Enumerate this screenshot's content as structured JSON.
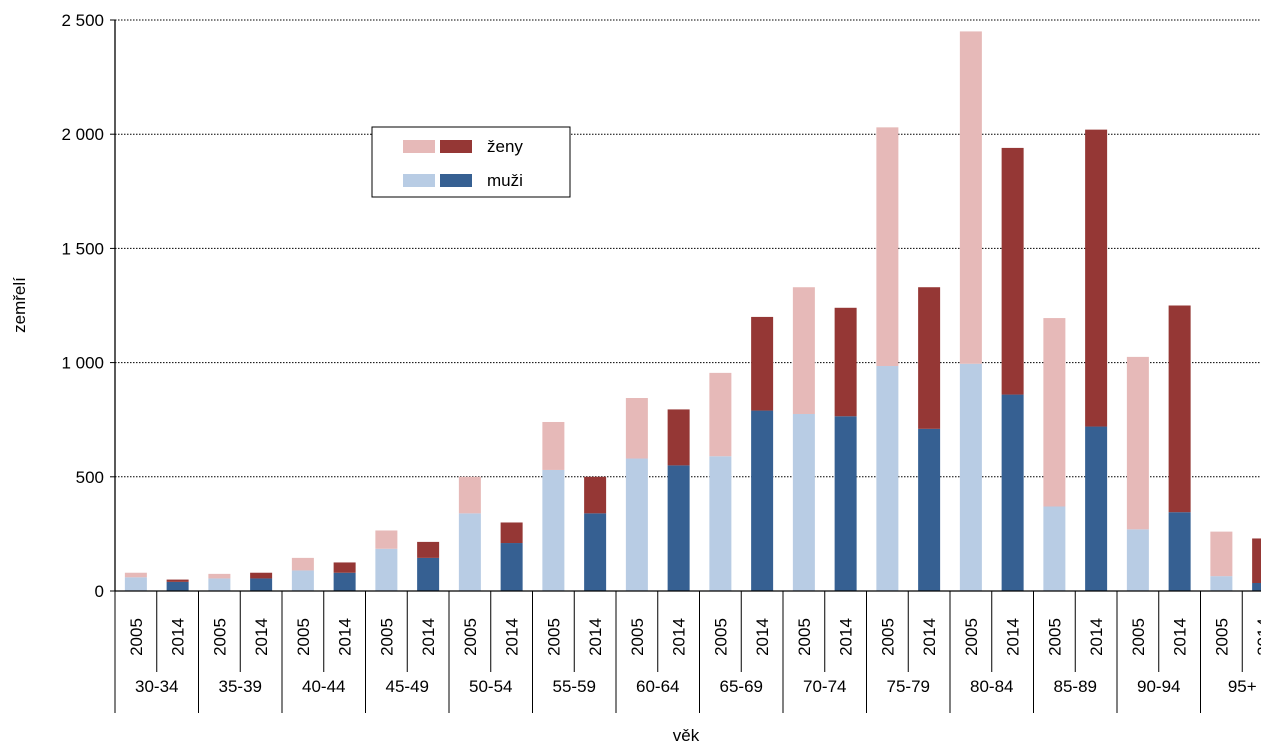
{
  "chart_data": {
    "type": "bar",
    "stacked": true,
    "title": "",
    "xlabel": "věk",
    "ylabel": "zemřelí",
    "ylim": [
      0,
      2500
    ],
    "yticks": [
      0,
      500,
      1000,
      1500,
      2000,
      2500
    ],
    "ytick_labels": [
      "0",
      "500",
      "1 000",
      "1 500",
      "2 000",
      "2 500"
    ],
    "grid": "horizontal dotted",
    "legend_position": "upper-left inside plot",
    "age_groups": [
      "30-34",
      "35-39",
      "40-44",
      "45-49",
      "50-54",
      "55-59",
      "60-64",
      "65-69",
      "70-74",
      "75-79",
      "80-84",
      "85-89",
      "90-94",
      "95+"
    ],
    "years": [
      "2005",
      "2014"
    ],
    "series": [
      {
        "name": "muži",
        "colors": {
          "2005": "#b8cce4",
          "2014": "#366092"
        },
        "values_2005": [
          60,
          55,
          90,
          185,
          340,
          530,
          580,
          590,
          775,
          985,
          995,
          370,
          270,
          65
        ],
        "values_2014": [
          40,
          55,
          80,
          145,
          210,
          340,
          550,
          790,
          765,
          710,
          860,
          720,
          345,
          35
        ]
      },
      {
        "name": "ženy",
        "colors": {
          "2005": "#e6b9b8",
          "2014": "#953735"
        },
        "values_2005": [
          20,
          20,
          55,
          80,
          160,
          210,
          265,
          365,
          555,
          1045,
          1455,
          825,
          755,
          195
        ],
        "values_2014": [
          10,
          25,
          45,
          70,
          90,
          160,
          245,
          410,
          475,
          620,
          1080,
          1300,
          905,
          195
        ]
      }
    ],
    "legend": [
      {
        "label": "ženy",
        "colors": [
          "#e6b9b8",
          "#953735"
        ]
      },
      {
        "label": "muži",
        "colors": [
          "#b8cce4",
          "#366092"
        ]
      }
    ]
  }
}
